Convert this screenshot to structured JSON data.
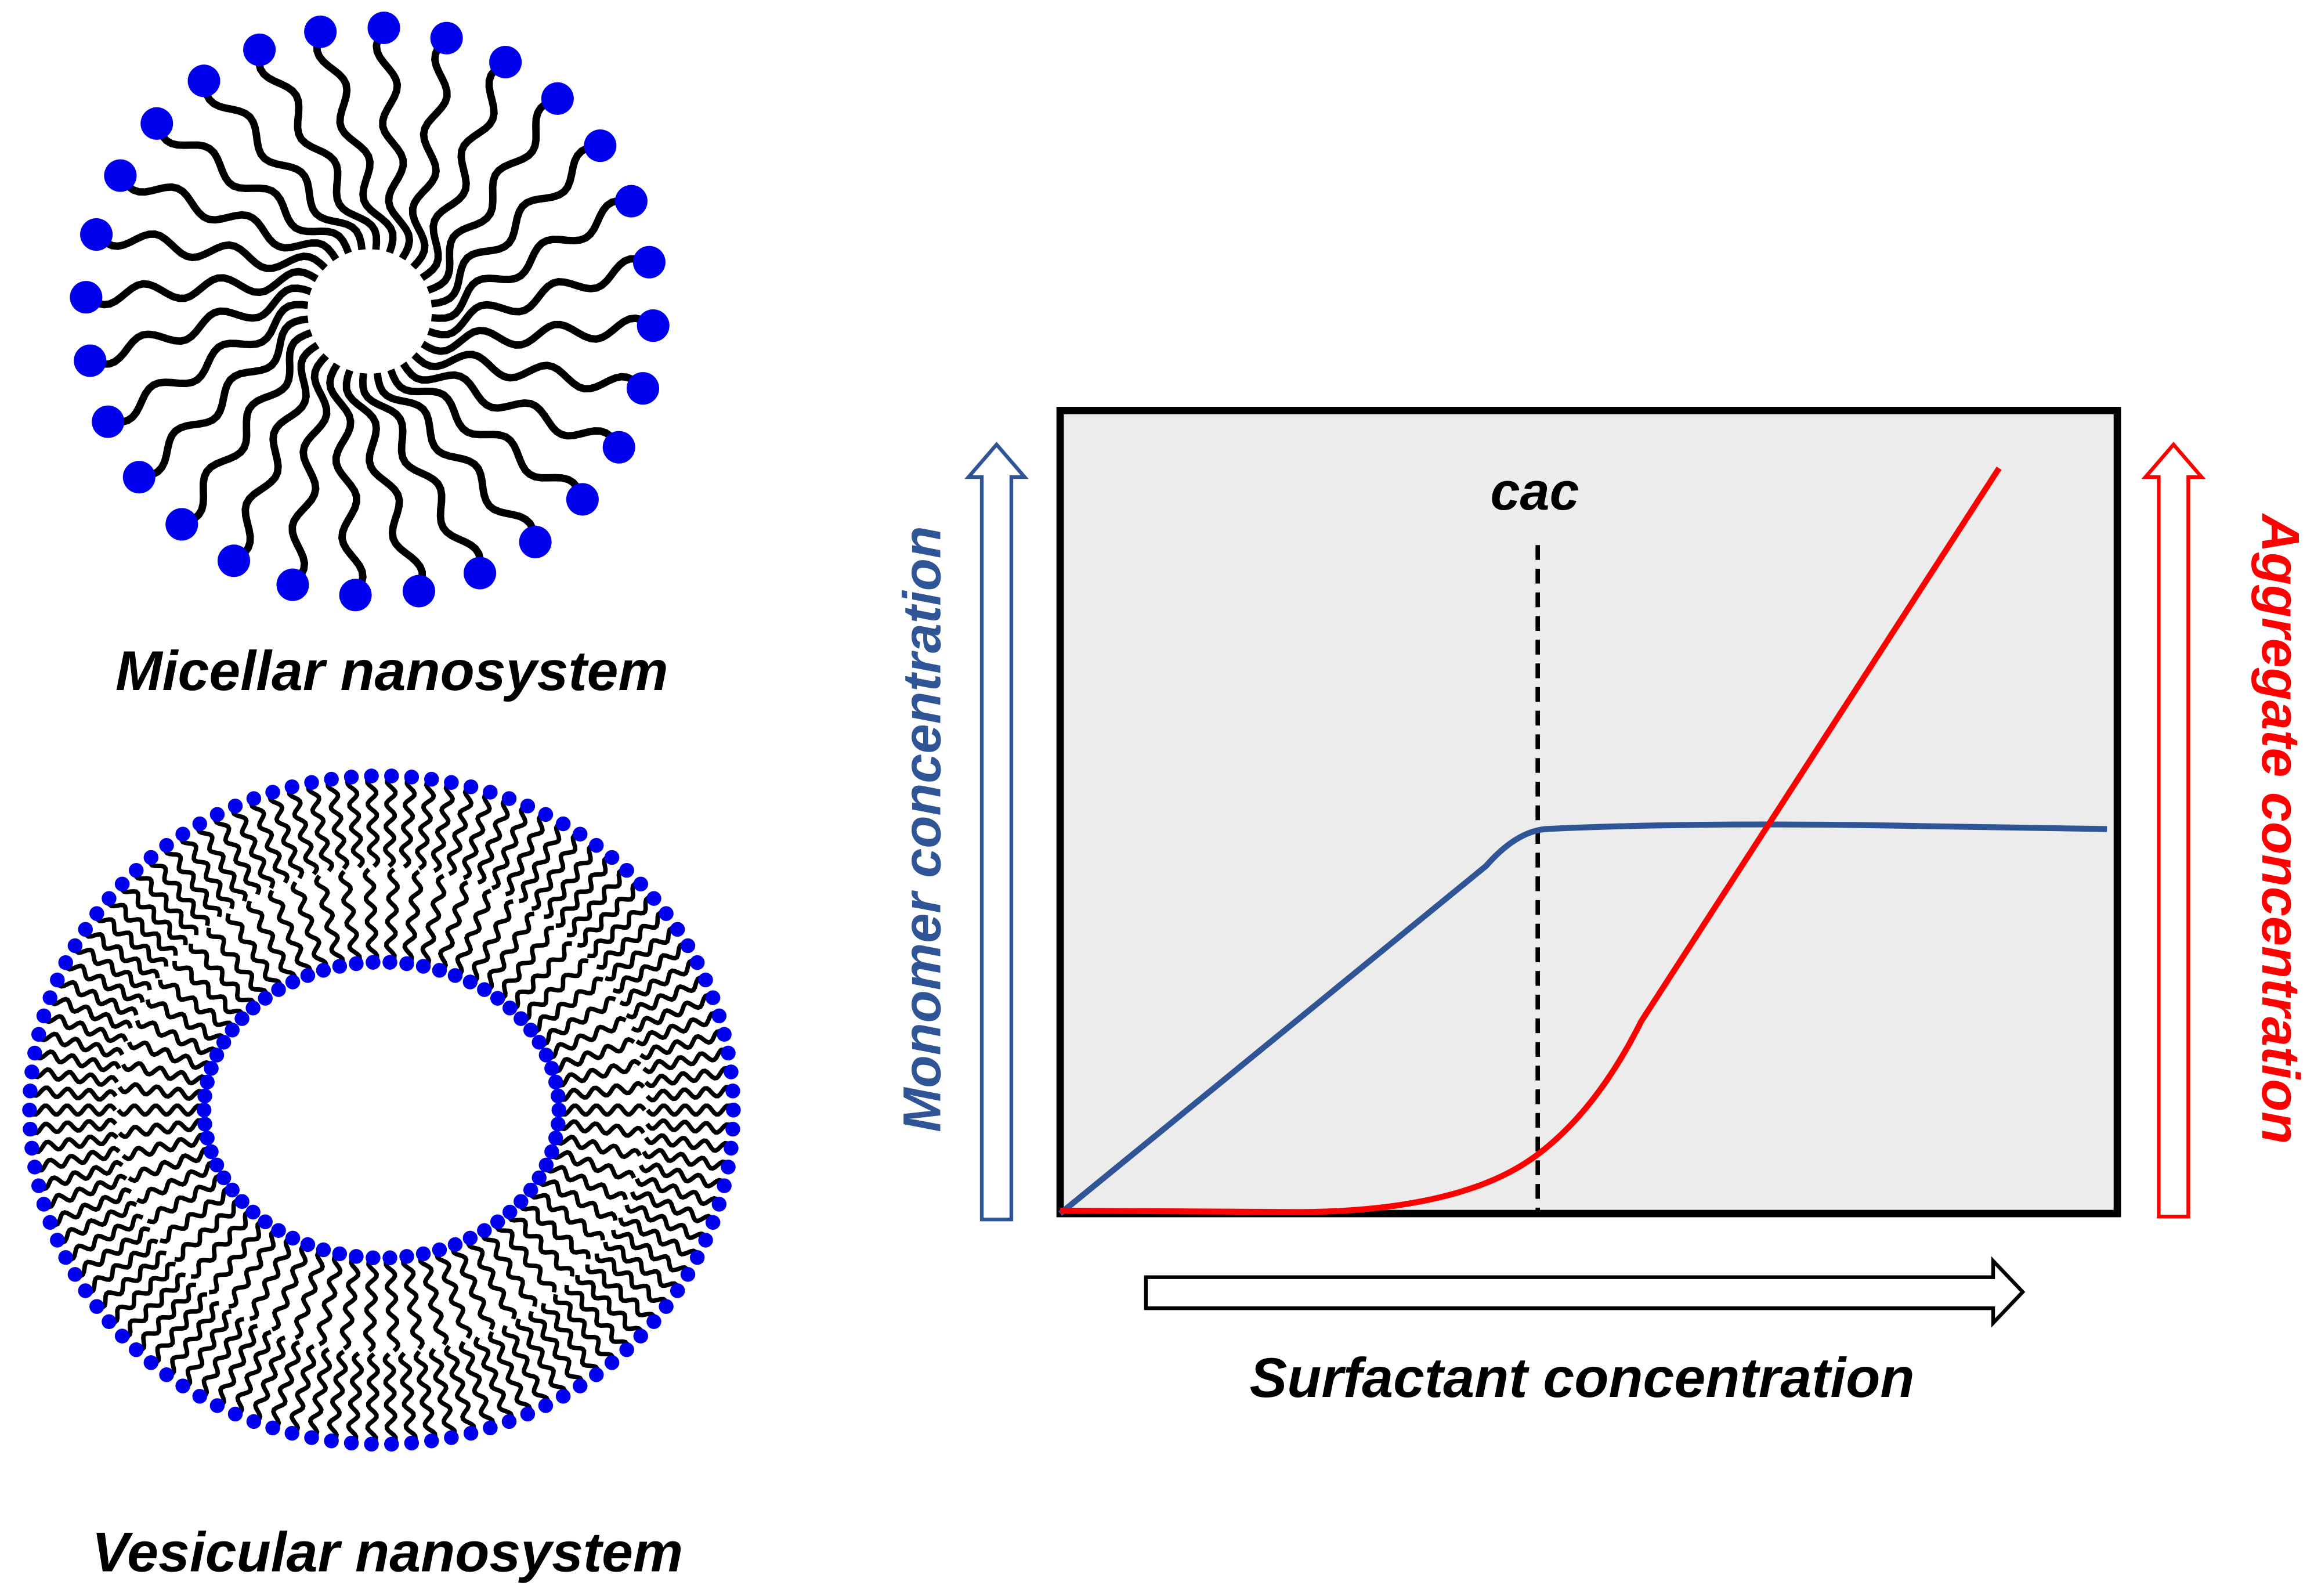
{
  "micelle": {
    "label": "Micellar nanosystem"
  },
  "vesicle": {
    "label": "Vesicular nanosystem"
  },
  "plot": {
    "marker": "cac",
    "y_left": "Monomer concentration",
    "y_right": "Aggregate concentration",
    "x_label": "Surfactant concentration"
  }
}
